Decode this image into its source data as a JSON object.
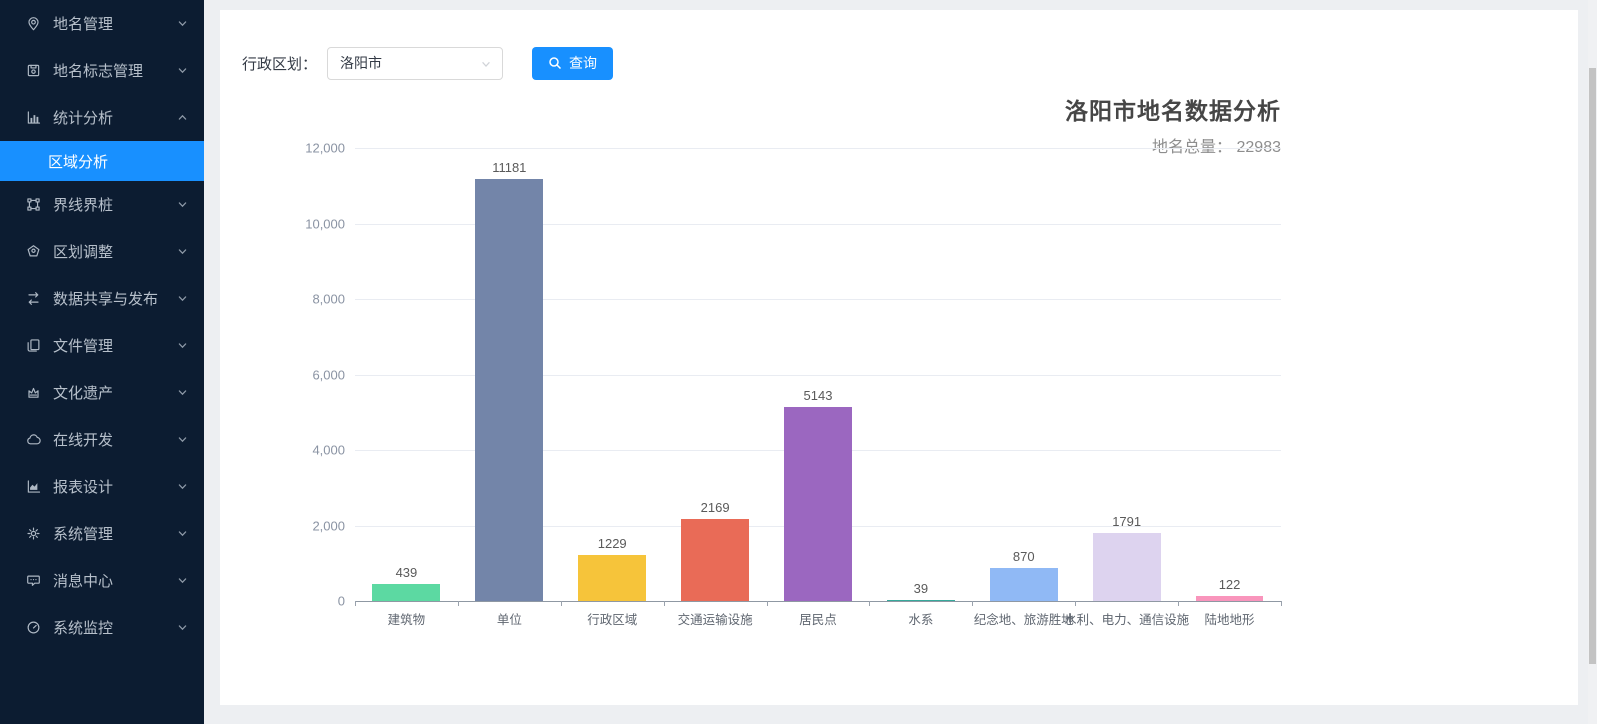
{
  "sidebar": {
    "items": [
      {
        "label": "地名管理",
        "icon": "location-pin-icon",
        "state": "collapsed"
      },
      {
        "label": "地名标志管理",
        "icon": "signboard-icon",
        "state": "collapsed"
      },
      {
        "label": "统计分析",
        "icon": "bar-chart-icon",
        "state": "expanded",
        "children": [
          {
            "label": "区域分析",
            "selected": true
          }
        ]
      },
      {
        "label": "界线界桩",
        "icon": "boundary-icon",
        "state": "collapsed"
      },
      {
        "label": "区划调整",
        "icon": "seal-icon",
        "state": "collapsed"
      },
      {
        "label": "数据共享与发布",
        "icon": "swap-icon",
        "state": "collapsed"
      },
      {
        "label": "文件管理",
        "icon": "files-icon",
        "state": "collapsed"
      },
      {
        "label": "文化遗产",
        "icon": "heritage-icon",
        "state": "collapsed"
      },
      {
        "label": "在线开发",
        "icon": "cloud-icon",
        "state": "collapsed"
      },
      {
        "label": "报表设计",
        "icon": "area-chart-icon",
        "state": "collapsed"
      },
      {
        "label": "系统管理",
        "icon": "gear-icon",
        "state": "collapsed"
      },
      {
        "label": "消息中心",
        "icon": "message-icon",
        "state": "collapsed"
      },
      {
        "label": "系统监控",
        "icon": "gauge-icon",
        "state": "collapsed"
      }
    ]
  },
  "filter": {
    "label": "行政区划：",
    "select_value": "洛阳市",
    "search_button": "查询"
  },
  "chart_data": {
    "type": "bar",
    "title": "洛阳市地名数据分析",
    "subtitle": "地名总量： 22983",
    "total": 22983,
    "categories": [
      "建筑物",
      "单位",
      "行政区域",
      "交通运输设施",
      "居民点",
      "水系",
      "纪念地、旅游胜地",
      "水利、电力、通信设施",
      "陆地地形"
    ],
    "values": [
      439,
      11181,
      1229,
      2169,
      5143,
      39,
      870,
      1791,
      122
    ],
    "bar_colors": [
      "#5cd9a2",
      "#7385a9",
      "#f6c43a",
      "#e96b57",
      "#9b67c0",
      "#36a99b",
      "#90b9f5",
      "#ddd3ef",
      "#f995bc"
    ],
    "xlabel": "",
    "ylabel": "",
    "ylim": [
      0,
      12000
    ],
    "yticks": [
      0,
      2000,
      4000,
      6000,
      8000,
      10000,
      12000
    ],
    "ytick_labels": [
      "0",
      "2,000",
      "4,000",
      "6,000",
      "8,000",
      "10,000",
      "12,000"
    ],
    "grid": true,
    "legend": false
  },
  "theme": {
    "sidebar_bg": "#0c1c31",
    "submenu_bg": "#061120",
    "selected_bg": "#1890ff",
    "accent": "#1890ff",
    "page_bg": "#edeff2"
  }
}
